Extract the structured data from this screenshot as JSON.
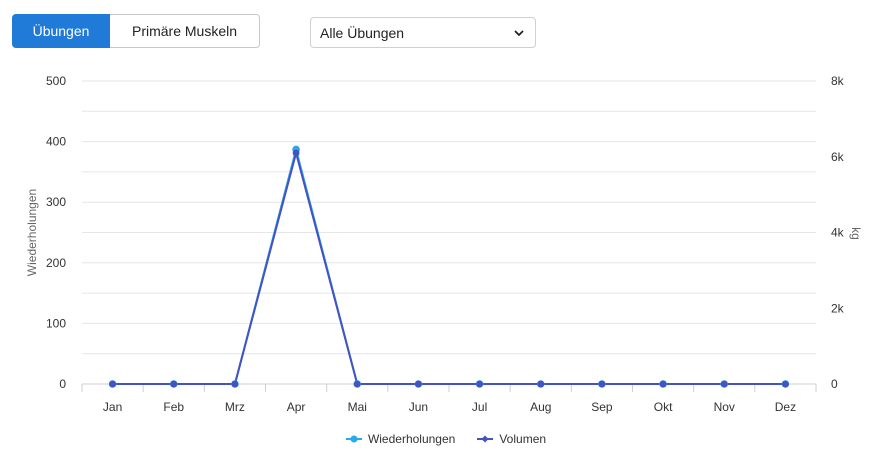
{
  "controls": {
    "tab_exercises": "Übungen",
    "tab_muscles": "Primäre Muskeln",
    "select_value": "Alle Übungen"
  },
  "colors": {
    "accent": "#1f7ad8",
    "series_reps": "#29a9e8",
    "series_volume": "#4452c4",
    "grid": "#e6e6e6"
  },
  "chart_data": {
    "type": "line",
    "categories": [
      "Jan",
      "Feb",
      "Mrz",
      "Apr",
      "Mai",
      "Jun",
      "Jul",
      "Aug",
      "Sep",
      "Okt",
      "Nov",
      "Dez"
    ],
    "series": [
      {
        "name": "Wiederholungen",
        "axis": "left",
        "values": [
          0,
          0,
          0,
          387,
          0,
          0,
          0,
          0,
          0,
          0,
          0,
          0
        ]
      },
      {
        "name": "Volumen",
        "axis": "right",
        "values": [
          0,
          0,
          0,
          6100,
          0,
          0,
          0,
          0,
          0,
          0,
          0,
          0
        ]
      }
    ],
    "y_left": {
      "label": "Wiederholungen",
      "range": [
        0,
        500
      ],
      "ticks": [
        "0",
        "100",
        "200",
        "300",
        "400",
        "500"
      ]
    },
    "y_right": {
      "label": "kg",
      "range": [
        0,
        8000
      ],
      "ticks": [
        "0",
        "2k",
        "4k",
        "6k",
        "8k"
      ]
    },
    "grid": true,
    "legend_position": "bottom-center"
  }
}
